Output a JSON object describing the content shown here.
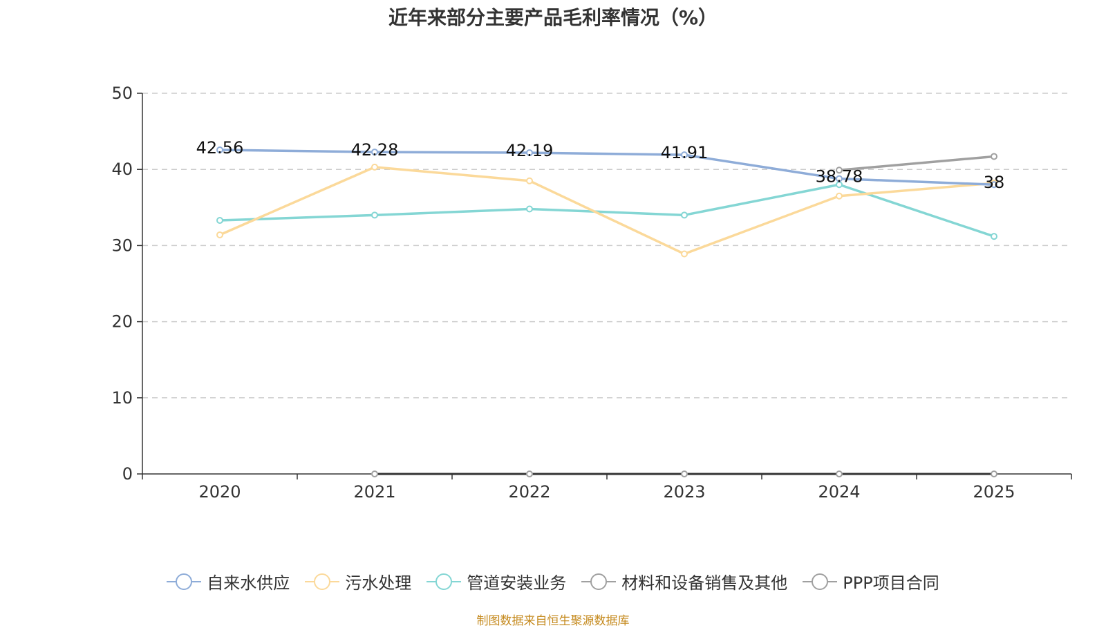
{
  "title": "近年来部分主要产品毛利率情况（%）",
  "source": "制图数据来自恒生聚源数据库",
  "chart_data": {
    "type": "line",
    "categories": [
      "2020",
      "2021",
      "2022",
      "2023",
      "2024",
      "2025"
    ],
    "ylim": [
      0,
      50
    ],
    "yticks": [
      0,
      10,
      20,
      30,
      40,
      50
    ],
    "ytick_labels": [
      "0",
      "10",
      "20",
      "30",
      "40",
      "50"
    ],
    "grid": true,
    "legend_position": "bottom",
    "series": [
      {
        "name": "自来水供应",
        "color": "#8eacd8",
        "values": [
          42.56,
          42.28,
          42.19,
          41.91,
          38.78,
          38
        ],
        "labels": [
          "42.56",
          "42.28",
          "42.19",
          "41.91",
          "38.78",
          "38"
        ]
      },
      {
        "name": "污水处理",
        "color": "#fbd99a",
        "values": [
          31.4,
          40.3,
          38.5,
          28.9,
          36.5,
          38.2
        ]
      },
      {
        "name": "管道安装业务",
        "color": "#84d6d4",
        "values": [
          33.3,
          34.0,
          34.8,
          34.0,
          38.0,
          31.2
        ]
      },
      {
        "name": "材料和设备销售及其他",
        "color": "#a0a0a0",
        "values": [
          null,
          null,
          null,
          null,
          39.9,
          41.7
        ]
      },
      {
        "name": "PPP项目合同",
        "color": "#a0a0a0",
        "values": [
          null,
          0,
          0,
          0,
          0,
          0
        ]
      }
    ]
  }
}
